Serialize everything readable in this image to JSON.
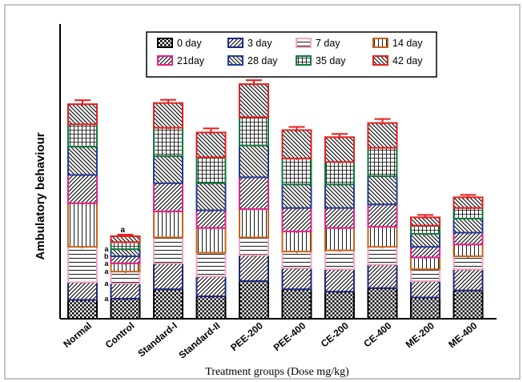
{
  "chart_data": {
    "type": "bar",
    "stacked": true,
    "title": "",
    "xlabel": "Treatment groups (Dose mg/kg)",
    "ylabel": "Ambulatory behaviour",
    "categories": [
      "Normal",
      "Control",
      "Standard-I",
      "Standard-II",
      "PEE-200",
      "PEE-400",
      "CE-200",
      "CE-400",
      "ME-200",
      "ME-400"
    ],
    "series": [
      {
        "name": "0 day",
        "color": "#000000",
        "pattern": "checker",
        "values": [
          16,
          17,
          25,
          19,
          32,
          25,
          23,
          26,
          18,
          24
        ]
      },
      {
        "name": "3 day",
        "color": "#1f2a80",
        "pattern": "diag-fwd",
        "values": [
          15,
          13,
          22,
          17,
          22,
          18,
          19,
          20,
          14,
          18
        ]
      },
      {
        "name": "7 day",
        "color": "#f4a6c6",
        "pattern": "horizontal",
        "values": [
          30,
          10,
          22,
          20,
          15,
          14,
          16,
          15,
          10,
          11
        ]
      },
      {
        "name": "14 day",
        "color": "#c8651b",
        "pattern": "vertical",
        "values": [
          37,
          7,
          22,
          21,
          24,
          17,
          19,
          17,
          10,
          10
        ]
      },
      {
        "name": "21day",
        "color": "#e8208c",
        "pattern": "diag-fwd",
        "values": [
          24,
          6,
          24,
          15,
          27,
          20,
          17,
          19,
          9,
          10
        ]
      },
      {
        "name": "28 day",
        "color": "#1f3e9a",
        "pattern": "diag-back",
        "values": [
          24,
          6,
          23,
          23,
          27,
          20,
          20,
          24,
          11,
          12
        ]
      },
      {
        "name": "35 day",
        "color": "#0f7d3c",
        "pattern": "grid",
        "values": [
          19,
          6,
          24,
          22,
          24,
          22,
          19,
          24,
          7,
          9
        ]
      },
      {
        "name": "42 day",
        "color": "#e81e1e",
        "pattern": "diag-back",
        "values": [
          17,
          5,
          21,
          21,
          28,
          24,
          21,
          21,
          7,
          9
        ]
      }
    ],
    "errors": [
      {
        "category": "Normal",
        "top": 5
      },
      {
        "category": "Control",
        "top": 2
      },
      {
        "category": "Standard-I",
        "top": 4
      },
      {
        "category": "Standard-II",
        "top": 5
      },
      {
        "category": "PEE-200",
        "top": 5
      },
      {
        "category": "PEE-400",
        "top": 4
      },
      {
        "category": "CE-200",
        "top": 4
      },
      {
        "category": "CE-400",
        "top": 5
      },
      {
        "category": "ME-200",
        "top": 3
      },
      {
        "category": "ME-400",
        "top": 3
      }
    ],
    "annotations": [
      "a",
      "a",
      "a",
      "a",
      "b",
      "a"
    ],
    "ylim": [
      0,
      250
    ],
    "legend_position": "top",
    "grid": false
  }
}
